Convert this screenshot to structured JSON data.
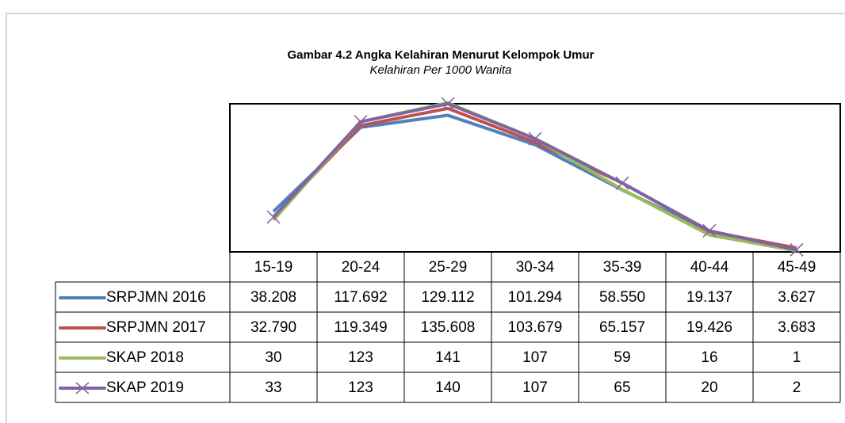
{
  "chart_data": {
    "type": "line",
    "title": "Gambar 4.2 Angka Kelahiran Menurut Kelompok Umur",
    "subtitle": "Kelahiran Per 1000 Wanita",
    "categories": [
      "15-19",
      "20-24",
      "25-29",
      "30-34",
      "35-39",
      "40-44",
      "45-49"
    ],
    "ylim": [
      0,
      140
    ],
    "series": [
      {
        "name": "SRPJMN 2016",
        "color": "#4f81bd",
        "values": [
          38.208,
          117.692,
          129.112,
          101.294,
          58.55,
          19.137,
          3.627
        ],
        "value_labels": [
          "38.208",
          "117.692",
          "129.112",
          "101.294",
          "58.550",
          "19.137",
          "3.627"
        ]
      },
      {
        "name": "SRPJMN 2017",
        "color": "#c0504d",
        "values": [
          32.79,
          119.349,
          135.608,
          103.679,
          65.157,
          19.426,
          3.683
        ],
        "value_labels": [
          "32.790",
          "119.349",
          "135.608",
          "103.679",
          "65.157",
          "19.426",
          "3.683"
        ]
      },
      {
        "name": "SKAP 2018",
        "color": "#9bbb59",
        "values": [
          30,
          123,
          141,
          107,
          59,
          16,
          1
        ]
      },
      {
        "name": "SKAP 2019",
        "color": "#8064a2",
        "marker": "x",
        "values": [
          33,
          123,
          140,
          107,
          65,
          20,
          2
        ]
      }
    ]
  }
}
